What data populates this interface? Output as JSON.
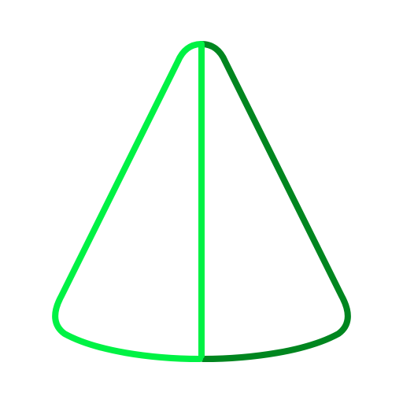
{
  "icon": {
    "name": "cone-icon",
    "colors": {
      "background": "#ffffff",
      "left_face": "#00f244",
      "right_face": "#00861f",
      "center_edge": "#00f244"
    }
  }
}
